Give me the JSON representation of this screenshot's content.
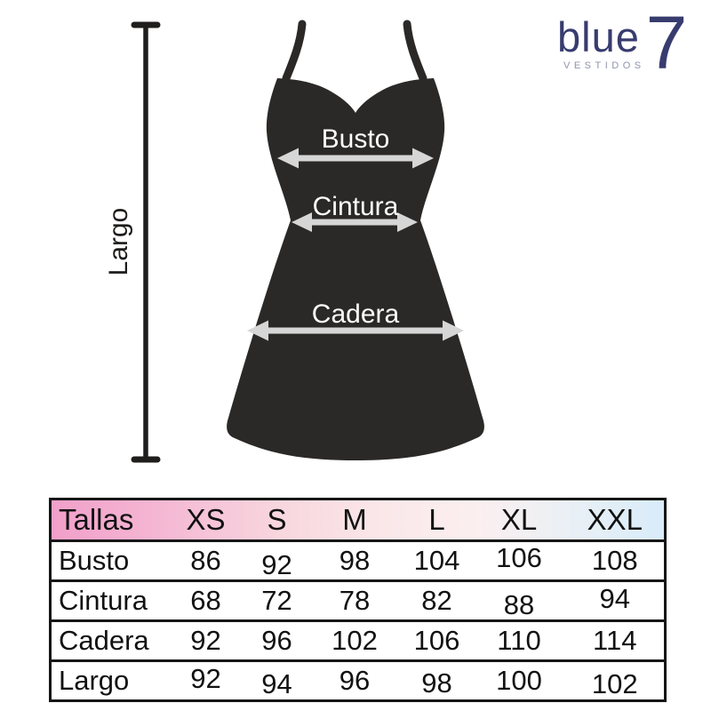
{
  "brand": {
    "word": "blue",
    "seven": "7",
    "tagline": "VESTIDOS",
    "logo_color": "#383c6e",
    "tagline_color": "#9094ac"
  },
  "diagram": {
    "length_label": "Largo",
    "measures": [
      {
        "label": "Busto"
      },
      {
        "label": "Cintura"
      },
      {
        "label": "Cadera"
      }
    ],
    "dress_color": "#2b2927",
    "arrow_color": "#d6d6d6",
    "measure_label_color": "#ffffff",
    "length_line_color": "#201e1d"
  },
  "table": {
    "header": [
      "Tallas",
      "XS",
      "S",
      "M",
      "L",
      "XL",
      "XXL"
    ],
    "rows": [
      {
        "label": "Busto",
        "values": [
          86,
          92,
          98,
          104,
          106,
          108
        ]
      },
      {
        "label": "Cintura",
        "values": [
          68,
          72,
          78,
          82,
          88,
          94
        ]
      },
      {
        "label": "Cadera",
        "values": [
          92,
          96,
          102,
          106,
          110,
          114
        ]
      },
      {
        "label": "Largo",
        "values": [
          92,
          94,
          96,
          98,
          100,
          102
        ]
      }
    ],
    "header_gradient": [
      "#f19fc9",
      "#f8d7de",
      "#fbeff0",
      "#d8ecfa"
    ],
    "border_color": "#161616",
    "text_color": "#121212"
  }
}
